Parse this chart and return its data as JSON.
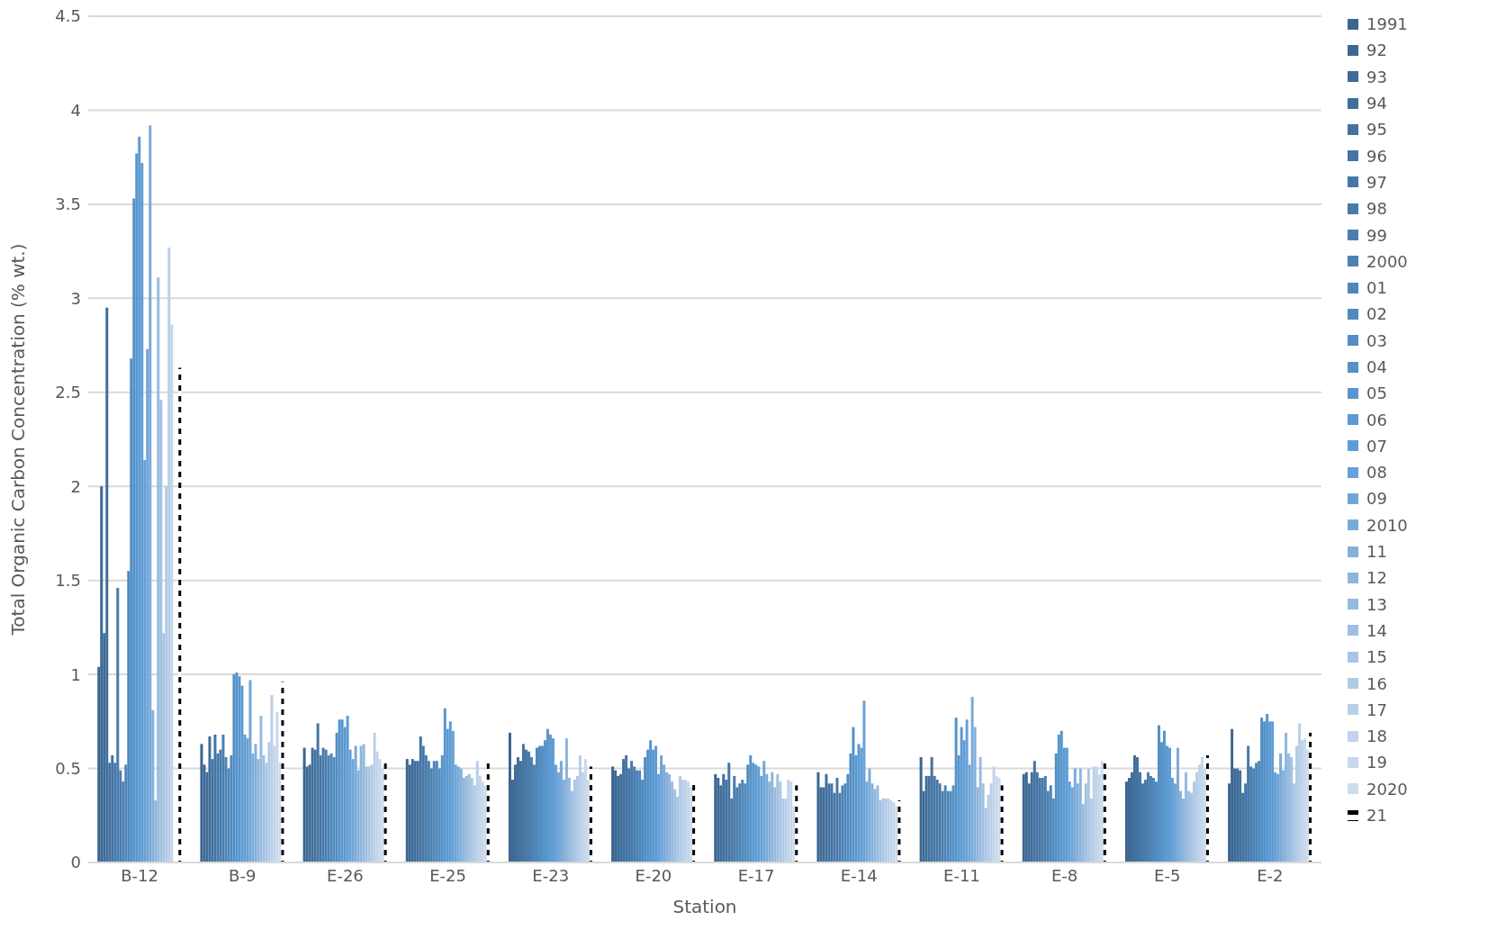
{
  "chart_data": {
    "type": "bar",
    "xlabel": "Station",
    "ylabel": "Total Organic Carbon Concentration (% wt.)",
    "categories": [
      "B-12",
      "B-9",
      "E-26",
      "E-25",
      "E-23",
      "E-20",
      "E-17",
      "E-14",
      "E-11",
      "E-8",
      "E-5",
      "E-2"
    ],
    "ylim": [
      0,
      4.5
    ],
    "yticks": [
      0,
      {
        "value": 0.5,
        "label": "0.5"
      },
      1,
      {
        "value": 1.5,
        "label": "1.5"
      },
      2,
      {
        "value": 2.5,
        "label": "2.5"
      },
      3,
      {
        "value": 3.5,
        "label": "3.5"
      },
      4,
      {
        "value": 4.5,
        "label": "4.5"
      }
    ],
    "grid": "y",
    "legend": "right",
    "series": [
      {
        "name": "1991",
        "color": "#3a6590",
        "values": [
          1.04,
          0.63,
          0.61,
          0.55,
          0.69,
          0.51,
          0.47,
          0.48,
          0.56,
          0.47,
          0.43,
          0.42
        ]
      },
      {
        "name": "92",
        "color": "#3c6893",
        "values": [
          2.0,
          0.52,
          0.51,
          0.52,
          0.44,
          0.49,
          0.45,
          0.4,
          0.38,
          0.48,
          0.45,
          0.71
        ]
      },
      {
        "name": "93",
        "color": "#3e6b97",
        "values": [
          1.22,
          0.48,
          0.52,
          0.55,
          0.52,
          0.46,
          0.41,
          0.4,
          0.46,
          0.42,
          0.48,
          0.5
        ]
      },
      {
        "name": "94",
        "color": "#406e9b",
        "values": [
          2.95,
          0.67,
          0.61,
          0.54,
          0.56,
          0.47,
          0.47,
          0.47,
          0.46,
          0.48,
          0.57,
          0.5
        ]
      },
      {
        "name": "95",
        "color": "#42719f",
        "values": [
          0.53,
          0.55,
          0.6,
          0.54,
          0.54,
          0.55,
          0.44,
          0.42,
          0.56,
          0.54,
          0.56,
          0.49
        ]
      },
      {
        "name": "96",
        "color": "#4474a3",
        "values": [
          0.57,
          0.68,
          0.74,
          0.67,
          0.63,
          0.57,
          0.53,
          0.42,
          0.46,
          0.48,
          0.48,
          0.37
        ]
      },
      {
        "name": "97",
        "color": "#4677a7",
        "values": [
          0.53,
          0.58,
          0.57,
          0.62,
          0.6,
          0.5,
          0.34,
          0.37,
          0.44,
          0.45,
          0.42,
          0.42
        ]
      },
      {
        "name": "98",
        "color": "#487aab",
        "values": [
          1.46,
          0.6,
          0.61,
          0.57,
          0.59,
          0.54,
          0.46,
          0.45,
          0.42,
          0.45,
          0.44,
          0.62
        ]
      },
      {
        "name": "99",
        "color": "#4a7eaf",
        "values": [
          0.49,
          0.68,
          0.6,
          0.54,
          0.56,
          0.51,
          0.4,
          0.37,
          0.38,
          0.46,
          0.48,
          0.51
        ]
      },
      {
        "name": "2000",
        "color": "#4c82b4",
        "values": [
          0.43,
          0.56,
          0.57,
          0.5,
          0.52,
          0.49,
          0.42,
          0.41,
          0.41,
          0.38,
          0.46,
          0.5
        ]
      },
      {
        "name": "01",
        "color": "#4e86b9",
        "values": [
          0.52,
          0.5,
          0.58,
          0.54,
          0.61,
          0.49,
          0.44,
          0.42,
          0.38,
          0.41,
          0.45,
          0.53
        ]
      },
      {
        "name": "02",
        "color": "#508abe",
        "values": [
          1.55,
          0.57,
          0.56,
          0.54,
          0.62,
          0.44,
          0.42,
          0.47,
          0.38,
          0.34,
          0.43,
          0.54
        ]
      },
      {
        "name": "03",
        "color": "#528ec3",
        "values": [
          2.68,
          1.0,
          0.69,
          0.5,
          0.62,
          0.56,
          0.52,
          0.58,
          0.41,
          0.58,
          0.73,
          0.77
        ]
      },
      {
        "name": "04",
        "color": "#5592c8",
        "values": [
          3.53,
          1.01,
          0.76,
          0.57,
          0.65,
          0.6,
          0.57,
          0.72,
          0.77,
          0.68,
          0.64,
          0.75
        ]
      },
      {
        "name": "05",
        "color": "#5896cd",
        "values": [
          3.77,
          0.99,
          0.76,
          0.82,
          0.71,
          0.65,
          0.53,
          0.57,
          0.57,
          0.7,
          0.7,
          0.79
        ]
      },
      {
        "name": "06",
        "color": "#5b9ad2",
        "values": [
          3.86,
          0.94,
          0.72,
          0.71,
          0.68,
          0.6,
          0.52,
          0.63,
          0.72,
          0.61,
          0.62,
          0.75
        ]
      },
      {
        "name": "07",
        "color": "#5e9cd5",
        "values": [
          3.72,
          0.68,
          0.78,
          0.75,
          0.66,
          0.62,
          0.51,
          0.61,
          0.65,
          0.61,
          0.61,
          0.75
        ]
      },
      {
        "name": "08",
        "color": "#66a0d6",
        "values": [
          2.14,
          0.66,
          0.6,
          0.7,
          0.52,
          0.47,
          0.46,
          0.86,
          0.76,
          0.43,
          0.45,
          0.48
        ]
      },
      {
        "name": "09",
        "color": "#70a5d8",
        "values": [
          2.73,
          0.97,
          0.55,
          0.52,
          0.48,
          0.57,
          0.54,
          0.43,
          0.52,
          0.4,
          0.42,
          0.47
        ]
      },
      {
        "name": "2010",
        "color": "#7aaad9",
        "values": [
          3.92,
          0.58,
          0.62,
          0.51,
          0.54,
          0.52,
          0.47,
          0.5,
          0.88,
          0.5,
          0.61,
          0.58
        ]
      },
      {
        "name": "11",
        "color": "#84b0db",
        "values": [
          0.81,
          0.63,
          0.49,
          0.5,
          0.44,
          0.48,
          0.43,
          0.42,
          0.72,
          0.42,
          0.38,
          0.49
        ]
      },
      {
        "name": "12",
        "color": "#8db5dd",
        "values": [
          0.33,
          0.55,
          0.62,
          0.45,
          0.66,
          0.47,
          0.48,
          0.39,
          0.4,
          0.5,
          0.34,
          0.69
        ]
      },
      {
        "name": "13",
        "color": "#97bbdf",
        "values": [
          3.11,
          0.78,
          0.63,
          0.46,
          0.45,
          0.43,
          0.4,
          0.41,
          0.56,
          0.31,
          0.48,
          0.58
        ]
      },
      {
        "name": "14",
        "color": "#a0c0e1",
        "values": [
          2.46,
          0.57,
          0.51,
          0.47,
          0.38,
          0.39,
          0.47,
          0.33,
          0.42,
          0.42,
          0.38,
          0.56
        ]
      },
      {
        "name": "15",
        "color": "#a9c5e4",
        "values": [
          1.22,
          0.53,
          0.51,
          0.45,
          0.44,
          0.35,
          0.43,
          0.34,
          0.29,
          0.5,
          0.37,
          0.42
        ]
      },
      {
        "name": "16",
        "color": "#b1cae6",
        "values": [
          2.0,
          0.64,
          0.52,
          0.41,
          0.46,
          0.46,
          0.34,
          0.34,
          0.36,
          0.34,
          0.43,
          0.62
        ]
      },
      {
        "name": "17",
        "color": "#b9cfe8",
        "values": [
          3.27,
          0.89,
          0.69,
          0.54,
          0.57,
          0.44,
          0.34,
          0.34,
          0.42,
          0.51,
          0.48,
          0.74
        ]
      },
      {
        "name": "18",
        "color": "#c0d4ea",
        "values": [
          2.86,
          0.62,
          0.59,
          0.46,
          0.48,
          0.44,
          0.44,
          0.33,
          0.51,
          0.51,
          0.52,
          0.65
        ]
      },
      {
        "name": "19",
        "color": "#c7d8ec",
        "values": [
          null,
          0.8,
          0.55,
          0.43,
          0.55,
          0.43,
          0.43,
          0.32,
          0.46,
          0.47,
          0.56,
          0.66
        ]
      },
      {
        "name": "2020",
        "color": "#cedded",
        "values": [
          null,
          0.53,
          0.5,
          0.41,
          0.44,
          0.4,
          0.3,
          0.3,
          0.45,
          0.54,
          0.5,
          0.6
        ]
      },
      {
        "name": "21",
        "color": "#000000",
        "line_style": "dashed",
        "values": [
          2.63,
          0.96,
          0.54,
          0.53,
          0.51,
          0.42,
          0.41,
          0.33,
          0.41,
          0.54,
          0.57,
          0.69
        ]
      }
    ]
  }
}
